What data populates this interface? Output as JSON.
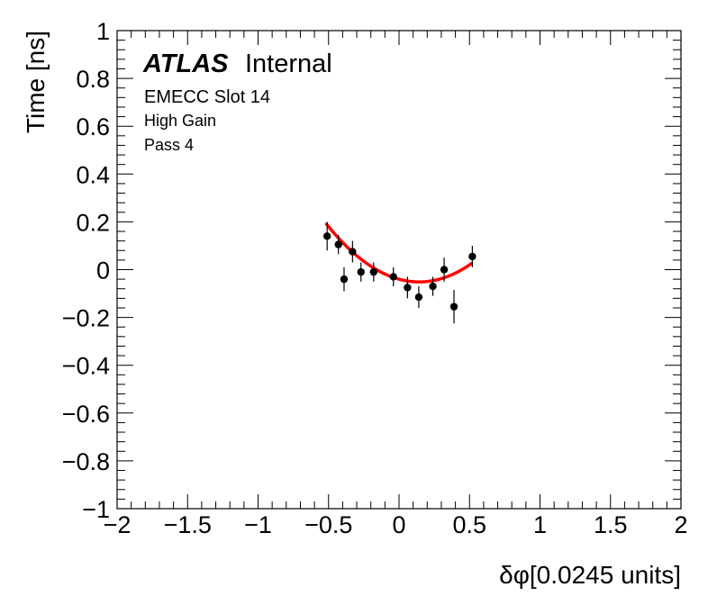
{
  "chart_data": {
    "type": "scatter",
    "title": "",
    "xlabel": "δφ[0.0245 units]",
    "ylabel": "Time [ns]",
    "xlim": [
      -2,
      2
    ],
    "ylim": [
      -1,
      1
    ],
    "x_ticks": [
      "−2",
      "−1.5",
      "−1",
      "−0.5",
      "0",
      "0.5",
      "1",
      "1.5",
      "2"
    ],
    "y_ticks": [
      "−1",
      "−0.8",
      "−0.6",
      "−0.4",
      "−0.2",
      "0",
      "0.2",
      "0.4",
      "0.6",
      "0.8",
      "1"
    ],
    "grid": false,
    "annotations": {
      "atlas": "ATLAS",
      "internal": "Internal",
      "line1": "EMECC Slot 14",
      "line2": "High Gain",
      "line3": "Pass 4"
    },
    "points": [
      {
        "x": -0.51,
        "y": 0.14,
        "err": 0.06
      },
      {
        "x": -0.43,
        "y": 0.105,
        "err": 0.04
      },
      {
        "x": -0.39,
        "y": -0.04,
        "err": 0.05
      },
      {
        "x": -0.33,
        "y": 0.075,
        "err": 0.045
      },
      {
        "x": -0.27,
        "y": -0.01,
        "err": 0.04
      },
      {
        "x": -0.18,
        "y": -0.01,
        "err": 0.04
      },
      {
        "x": -0.04,
        "y": -0.03,
        "err": 0.04
      },
      {
        "x": 0.06,
        "y": -0.075,
        "err": 0.045
      },
      {
        "x": 0.14,
        "y": -0.115,
        "err": 0.045
      },
      {
        "x": 0.24,
        "y": -0.07,
        "err": 0.04
      },
      {
        "x": 0.32,
        "y": 0.0,
        "err": 0.05
      },
      {
        "x": 0.39,
        "y": -0.155,
        "err": 0.07
      },
      {
        "x": 0.52,
        "y": 0.055,
        "err": 0.045
      }
    ],
    "fit": {
      "type": "quadratic",
      "color": "#ff0000",
      "x_range": [
        -0.52,
        0.52
      ],
      "coefficients": {
        "a": 0.56,
        "b": -0.16,
        "c": -0.04
      }
    },
    "marker_color": "#000000"
  }
}
